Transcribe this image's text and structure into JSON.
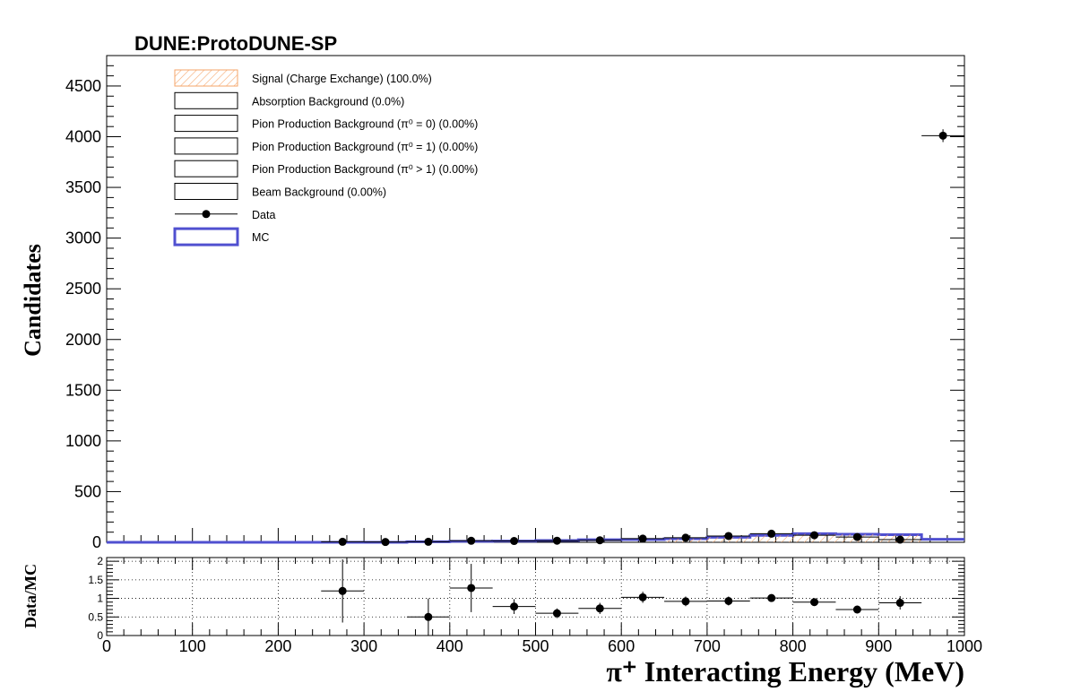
{
  "chart_data": [
    {
      "type": "histogram",
      "title": "DUNE:ProtoDUNE-SP",
      "xlabel": "π⁺ Interacting Energy (MeV)",
      "ylabel": "Candidates",
      "xlim": [
        0,
        1000
      ],
      "ylim": [
        0,
        4800
      ],
      "x_ticks": [
        0,
        100,
        200,
        300,
        400,
        500,
        600,
        700,
        800,
        900,
        1000
      ],
      "y_ticks": [
        0,
        500,
        1000,
        1500,
        2000,
        2500,
        3000,
        3500,
        4000,
        4500
      ],
      "bin_edges": [
        0,
        50,
        100,
        150,
        200,
        250,
        300,
        350,
        400,
        450,
        500,
        550,
        600,
        650,
        700,
        750,
        800,
        850,
        900,
        950,
        1000
      ],
      "legend": [
        {
          "label": "Signal (Charge Exchange) (100.0%)",
          "style": "hatched",
          "color": "#f5a56a"
        },
        {
          "label": "Absorption Background (0.0%)",
          "style": "box"
        },
        {
          "label": "Pion Production Background (π⁰ = 0) (0.00%)",
          "style": "box"
        },
        {
          "label": "Pion Production Background (π⁰ = 1) (0.00%)",
          "style": "box"
        },
        {
          "label": "Pion Production Background (π⁰ > 1) (0.00%)",
          "style": "box"
        },
        {
          "label": "Beam Background (0.00%)",
          "style": "box"
        },
        {
          "label": "Data",
          "style": "marker"
        },
        {
          "label": "MC",
          "style": "line",
          "color": "#5050d0"
        }
      ],
      "series": [
        {
          "name": "MC",
          "values": [
            0,
            0,
            0,
            0,
            0,
            0,
            0,
            5,
            10,
            12,
            18,
            25,
            28,
            35,
            50,
            68,
            85,
            80,
            75,
            30
          ]
        },
        {
          "name": "Data",
          "x": [
            275,
            325,
            375,
            425,
            475,
            525,
            575,
            625,
            675,
            725,
            775,
            825,
            875,
            925,
            975
          ],
          "y": [
            5,
            3,
            5,
            15,
            13,
            16,
            20,
            36,
            45,
            62,
            85,
            70,
            52,
            26,
            4010
          ],
          "yerr": [
            2,
            2,
            2,
            4,
            4,
            4,
            4,
            6,
            7,
            8,
            9,
            8,
            7,
            5,
            63
          ]
        }
      ]
    },
    {
      "type": "ratio",
      "ylabel": "Data/MC",
      "xlim": [
        0,
        1000
      ],
      "ylim": [
        0,
        2.1
      ],
      "y_ticks": [
        0,
        0.5,
        1,
        1.5,
        2
      ],
      "y_tick_labels": [
        "0",
        "0.5",
        "1",
        "1.5",
        "2"
      ],
      "grid": true,
      "x": [
        275,
        375,
        425,
        475,
        525,
        575,
        625,
        675,
        725,
        775,
        825,
        875,
        925
      ],
      "y": [
        1.2,
        0.5,
        1.28,
        0.78,
        0.6,
        0.73,
        1.03,
        0.92,
        0.93,
        1.01,
        0.9,
        0.7,
        0.88
      ],
      "yerr": [
        0.85,
        0.5,
        0.65,
        0.2,
        0.13,
        0.15,
        0.15,
        0.13,
        0.12,
        0.1,
        0.1,
        0.1,
        0.18
      ]
    }
  ]
}
